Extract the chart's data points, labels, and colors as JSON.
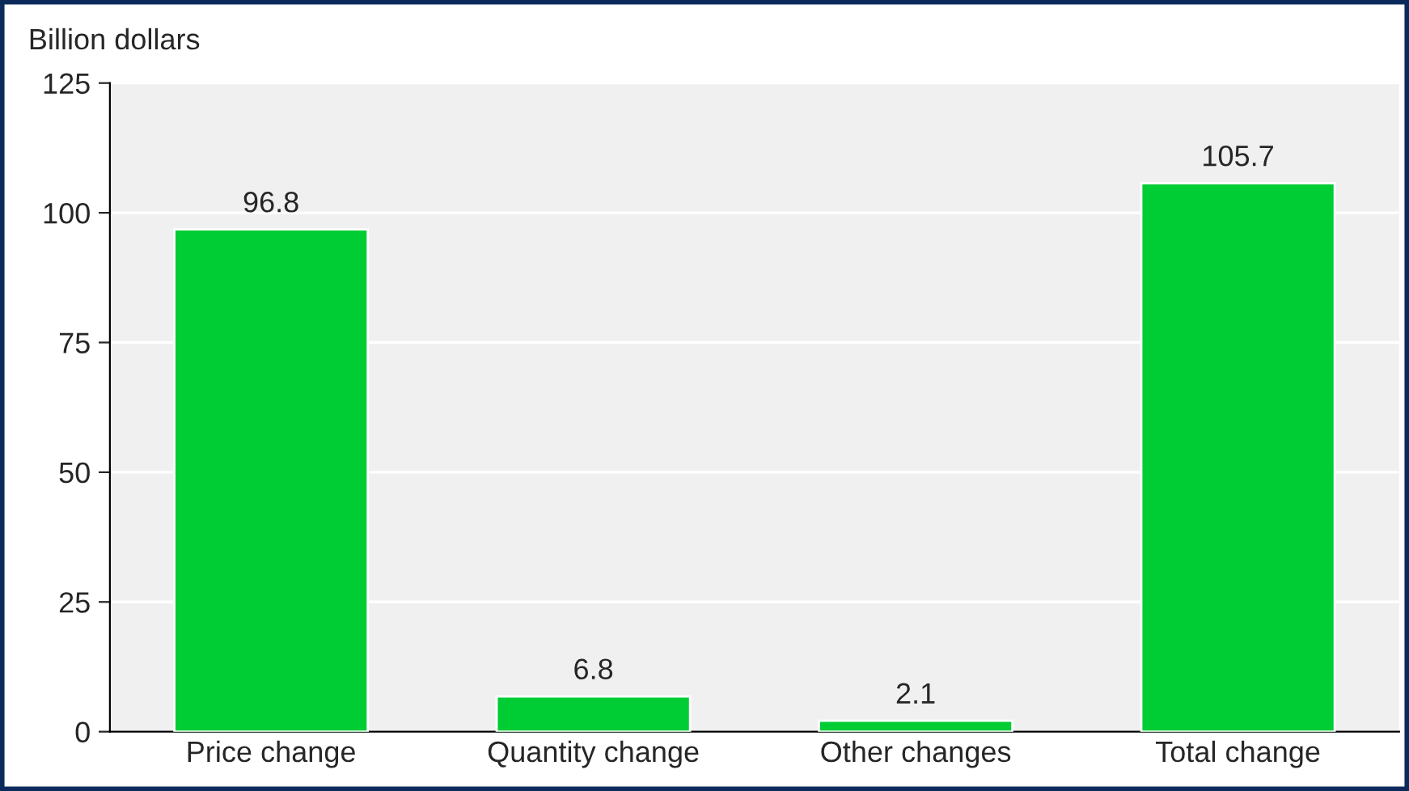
{
  "chart_data": {
    "type": "bar",
    "ylabel": "Billion dollars",
    "categories": [
      "Price change",
      "Quantity change",
      "Other changes",
      "Total change"
    ],
    "values": [
      96.8,
      6.8,
      2.1,
      105.7
    ],
    "color": "#00cc33",
    "ylim": [
      0,
      125
    ],
    "yticks": [
      0,
      25,
      50,
      75,
      100,
      125
    ],
    "grid": "y",
    "data_labels": true
  }
}
